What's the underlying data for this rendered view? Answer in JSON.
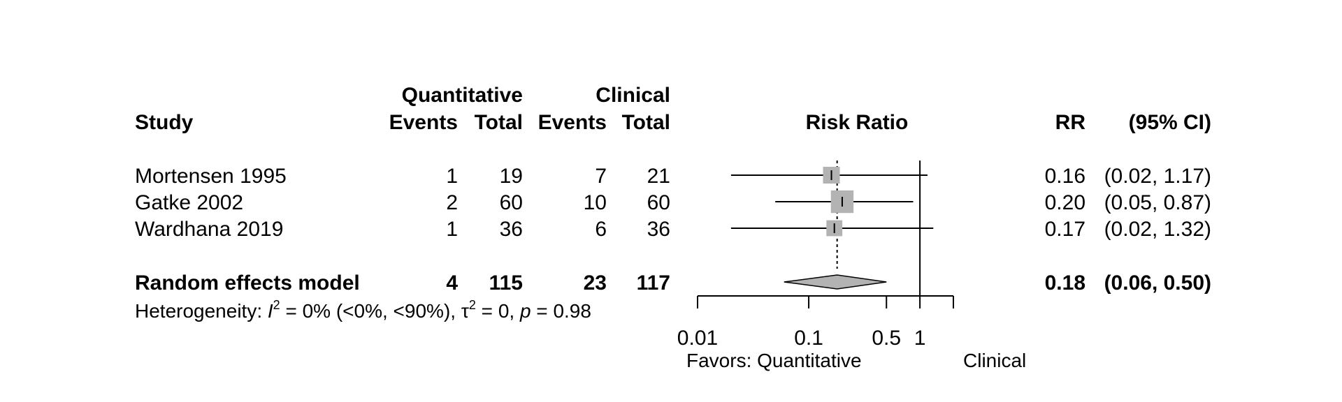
{
  "chart_data": {
    "type": "forest",
    "headers": {
      "study": "Study",
      "group1": "Quantitative",
      "group2": "Clinical",
      "events": "Events",
      "total": "Total",
      "plot": "Risk Ratio",
      "rr": "RR",
      "ci": "(95% CI)"
    },
    "studies": [
      {
        "name": "Mortensen 1995",
        "e1": "1",
        "n1": "19",
        "e2": "7",
        "n2": "21",
        "rr": 0.16,
        "lo": 0.02,
        "hi": 1.17,
        "weight": 1.0,
        "rr_text": "0.16",
        "ci_text": "(0.02, 1.17)"
      },
      {
        "name": "Gatke 2002",
        "e1": "2",
        "n1": "60",
        "e2": "10",
        "n2": "60",
        "rr": 0.2,
        "lo": 0.05,
        "hi": 0.87,
        "weight": 1.35,
        "rr_text": "0.20",
        "ci_text": "(0.05, 0.87)"
      },
      {
        "name": "Wardhana 2019",
        "e1": "1",
        "n1": "36",
        "e2": "6",
        "n2": "36",
        "rr": 0.17,
        "lo": 0.02,
        "hi": 1.32,
        "weight": 0.95,
        "rr_text": "0.17",
        "ci_text": "(0.02, 1.32)"
      }
    ],
    "pooled": {
      "name": "Random effects model",
      "e1": "4",
      "n1": "115",
      "e2": "23",
      "n2": "117",
      "rr": 0.18,
      "lo": 0.06,
      "hi": 0.5,
      "rr_text": "0.18",
      "ci_text": "(0.06, 0.50)"
    },
    "heterogeneity": {
      "prefix": "Heterogeneity: ",
      "i2_symbol": "I",
      "i2_text": " = 0% (<0%, <90%), ",
      "tau_symbol": "τ",
      "tau_text": " = 0, ",
      "p_symbol": "p",
      "p_text": " = 0.98"
    },
    "x_scale": "log",
    "x_range": [
      0.01,
      2
    ],
    "x_ticks": [
      0.01,
      0.1,
      0.5,
      1,
      2
    ],
    "x_tick_labels": [
      "0.01",
      "0.1",
      "0.5",
      "1",
      ""
    ],
    "reference_line": 1,
    "favors_left": "Favors: Quantitative",
    "favors_right": "Clinical",
    "colors": {
      "box": "#b3b3b3",
      "diamond": "#b3b3b3",
      "line": "#000000"
    }
  }
}
